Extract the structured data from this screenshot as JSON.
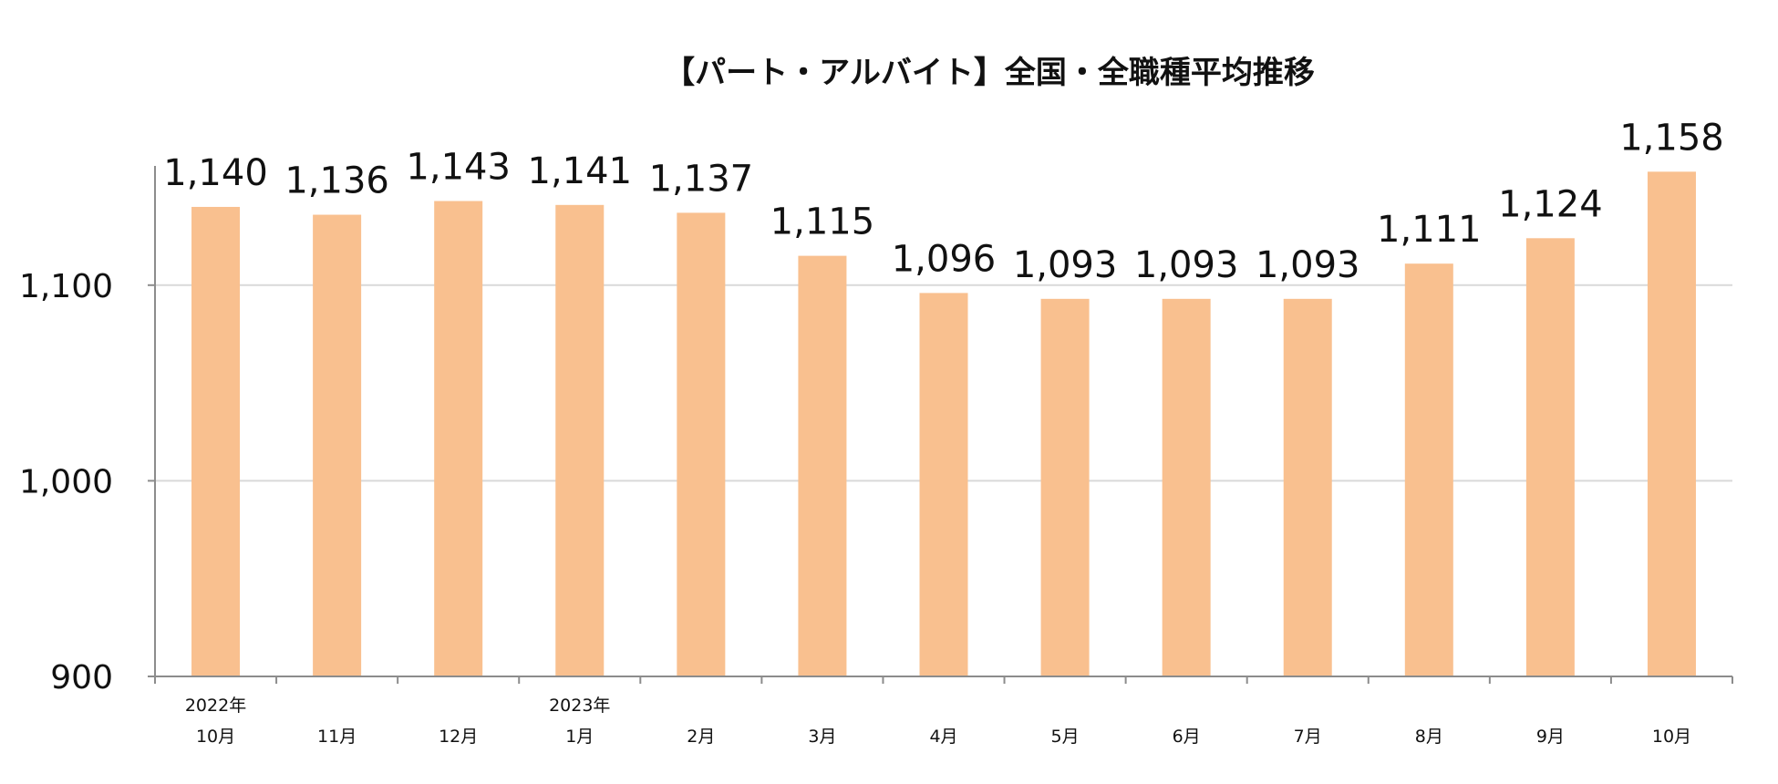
{
  "chart_data": {
    "type": "bar",
    "title": "【パート・アルバイト】全国・全職種平均推移",
    "categories": [
      "10月",
      "11月",
      "12月",
      "1月",
      "2月",
      "3月",
      "4月",
      "5月",
      "6月",
      "7月",
      "8月",
      "9月",
      "10月"
    ],
    "year_labels": [
      "2022年",
      "",
      "",
      "2023年",
      "",
      "",
      "",
      "",
      "",
      "",
      "",
      "",
      ""
    ],
    "values": [
      1140,
      1136,
      1143,
      1141,
      1137,
      1115,
      1096,
      1093,
      1093,
      1093,
      1111,
      1124,
      1158
    ],
    "data_labels": [
      "1,140",
      "1,136",
      "1,143",
      "1,141",
      "1,137",
      "1,115",
      "1,096",
      "1,093",
      "1,093",
      "1,093",
      "1,111",
      "1,124",
      "1,158"
    ],
    "yticks": [
      900,
      1000,
      1100
    ],
    "ytick_labels": [
      "900",
      "1,000",
      "1,100"
    ],
    "ylim": [
      900,
      1160
    ],
    "grid": true,
    "bar_color": "#F9C08F",
    "grid_color": "#D9D9D9",
    "axis_color": "#8C8C8C"
  }
}
